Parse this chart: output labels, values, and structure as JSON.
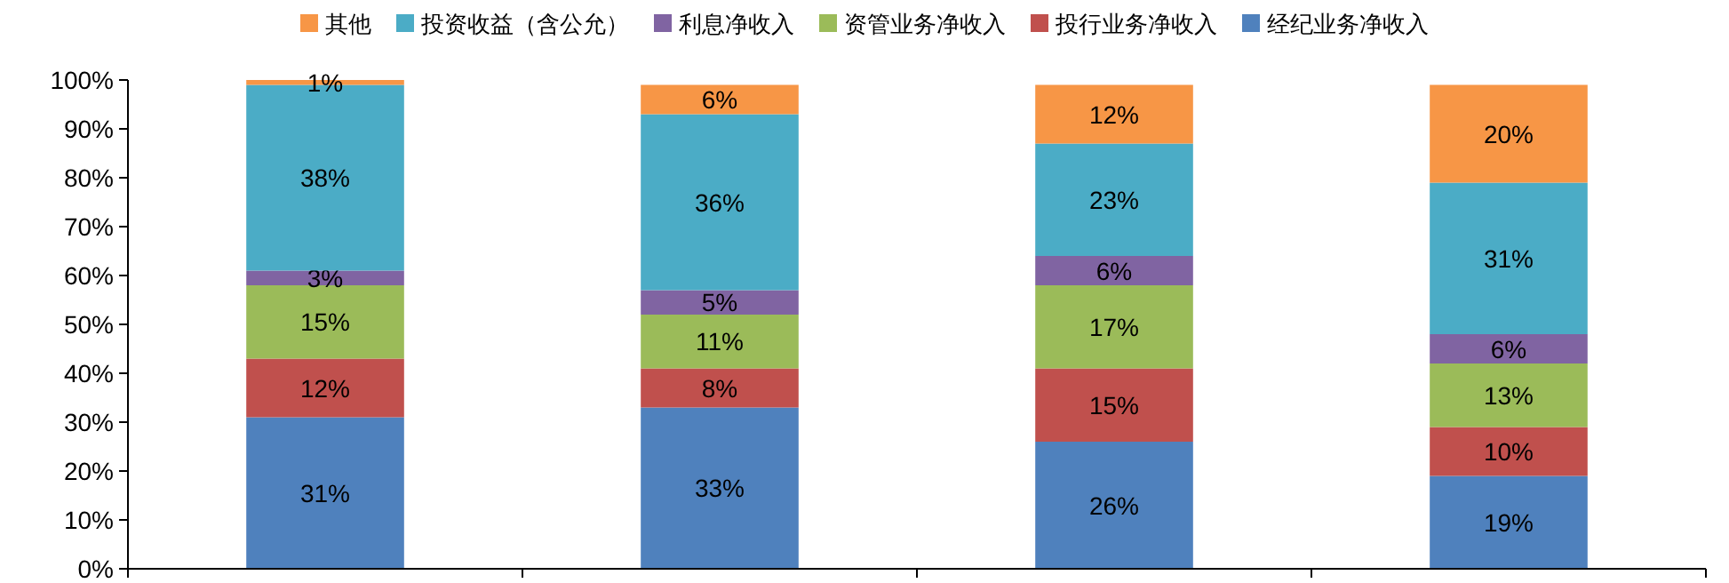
{
  "chart_data": {
    "type": "bar",
    "stacked": true,
    "categories": [
      null,
      null,
      null,
      null
    ],
    "ylim": [
      0,
      100
    ],
    "yticks": [
      {
        "value": 0,
        "label": "0%"
      },
      {
        "value": 10,
        "label": "10%"
      },
      {
        "value": 20,
        "label": "20%"
      },
      {
        "value": 30,
        "label": "30%"
      },
      {
        "value": 40,
        "label": "40%"
      },
      {
        "value": 50,
        "label": "50%"
      },
      {
        "value": 60,
        "label": "60%"
      },
      {
        "value": 70,
        "label": "70%"
      },
      {
        "value": 80,
        "label": "80%"
      },
      {
        "value": 90,
        "label": "90%"
      },
      {
        "value": 100,
        "label": "100%"
      }
    ],
    "legend": "top",
    "series": [
      {
        "name": "经纪业务净收入",
        "color": "#4f81bd",
        "values": [
          31,
          33,
          26,
          19
        ],
        "value_labels": [
          "31%",
          "33%",
          "26%",
          "19%"
        ]
      },
      {
        "name": "投行业务净收入",
        "color": "#c0504d",
        "values": [
          12,
          8,
          15,
          10
        ],
        "value_labels": [
          "12%",
          "8%",
          "15%",
          "10%"
        ]
      },
      {
        "name": "资管业务净收入",
        "color": "#9bbb59",
        "values": [
          15,
          11,
          17,
          13
        ],
        "value_labels": [
          "15%",
          "11%",
          "17%",
          "13%"
        ]
      },
      {
        "name": "利息净收入",
        "color": "#8064a2",
        "values": [
          3,
          5,
          6,
          6
        ],
        "value_labels": [
          "3%",
          "5%",
          "6%",
          "6%"
        ]
      },
      {
        "name": "投资收益（含公允）",
        "color": "#4bacc6",
        "values": [
          38,
          36,
          23,
          31
        ],
        "value_labels": [
          "38%",
          "36%",
          "23%",
          "31%"
        ]
      },
      {
        "name": "其他",
        "color": "#f79646",
        "values": [
          1,
          6,
          12,
          20
        ],
        "value_labels": [
          "1%",
          "6%",
          "12%",
          "20%"
        ]
      }
    ]
  }
}
